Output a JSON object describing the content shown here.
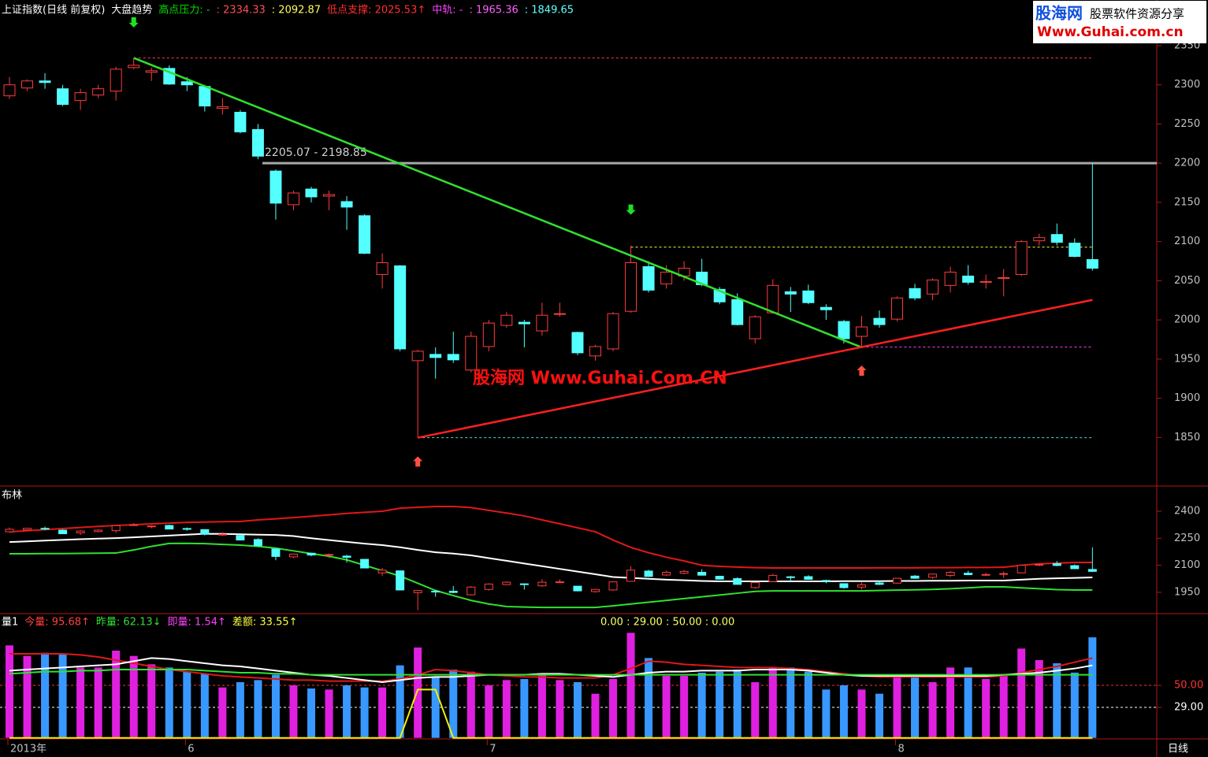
{
  "chart_data": [
    {
      "type": "candlestick",
      "header": [
        {
          "text": "上证指数(日线 前复权)",
          "color": "#ffffff"
        },
        {
          "text": "大盘趋势",
          "color": "#ffffff"
        },
        {
          "text": "高点压力: -",
          "color": "#00e000"
        },
        {
          "text": ": 2334.33",
          "color": "#ff5050"
        },
        {
          "text": ": 2092.87",
          "color": "#ffff60"
        },
        {
          "text": "低点支撑: 2025.53↑",
          "color": "#ff3030"
        },
        {
          "text": "中轨: -",
          "color": "#ff40ff"
        },
        {
          "text": ": 1965.36",
          "color": "#ff60ff"
        },
        {
          "text": ": 1849.65",
          "color": "#60ffff"
        }
      ],
      "open": [
        2286,
        2296,
        2305,
        2295,
        2280,
        2287,
        2292,
        2322,
        2316,
        2321,
        2304,
        2298,
        2270,
        2265,
        2243,
        2190,
        2147,
        2167,
        2158,
        2151,
        2133,
        2058,
        2069,
        1948,
        1956,
        1956,
        1936,
        1966,
        1993,
        1997,
        1986,
        2007,
        1984,
        1954,
        1963,
        2011,
        2068,
        2046,
        2056,
        2061,
        2039,
        2026,
        1976,
        2009,
        2036,
        2037,
        2016,
        1998,
        1979,
        2002,
        2001,
        2040,
        2033,
        2044,
        2056,
        2048,
        2053,
        2058,
        2101,
        2109,
        2098,
        2077
      ],
      "high": [
        2310,
        2307,
        2315,
        2300,
        2295,
        2300,
        2323,
        2334,
        2322,
        2325,
        2310,
        2300,
        2283,
        2268,
        2250,
        2192,
        2165,
        2170,
        2165,
        2158,
        2135,
        2085,
        2070,
        1962,
        1965,
        1985,
        1985,
        2000,
        2010,
        2000,
        2022,
        2022,
        1985,
        1968,
        2010,
        2095,
        2075,
        2070,
        2075,
        2078,
        2042,
        2034,
        2006,
        2052,
        2042,
        2045,
        2020,
        2000,
        2005,
        2012,
        2030,
        2046,
        2053,
        2068,
        2070,
        2058,
        2065,
        2102,
        2110,
        2123,
        2104,
        2199
      ],
      "low": [
        2282,
        2292,
        2295,
        2273,
        2268,
        2283,
        2280,
        2320,
        2305,
        2300,
        2292,
        2266,
        2262,
        2238,
        2205,
        2128,
        2140,
        2150,
        2140,
        2115,
        2084,
        2040,
        1960,
        1850,
        1925,
        1945,
        1933,
        1960,
        1990,
        1965,
        1980,
        2004,
        1955,
        1948,
        1960,
        2009,
        2035,
        2040,
        2050,
        2043,
        2020,
        1993,
        1970,
        2008,
        2010,
        2020,
        2000,
        1970,
        1966,
        1990,
        1998,
        2025,
        2025,
        2035,
        2045,
        2040,
        2030,
        2056,
        2095,
        2095,
        2080,
        2063
      ],
      "close": [
        2300,
        2305,
        2303,
        2275,
        2290,
        2295,
        2320,
        2325,
        2318,
        2301,
        2300,
        2273,
        2272,
        2240,
        2209,
        2149,
        2162,
        2157,
        2160,
        2144,
        2085,
        2073,
        1963,
        1960,
        1952,
        1949,
        1979,
        1996,
        2006,
        1995,
        2006,
        2008,
        1958,
        1966,
        2008,
        2073,
        2038,
        2061,
        2066,
        2045,
        2023,
        1994,
        2004,
        2044,
        2033,
        2022,
        2013,
        1976,
        1991,
        1994,
        2028,
        2028,
        2051,
        2061,
        2048,
        2049,
        2054,
        2100,
        2105,
        2099,
        2081,
        2066
      ],
      "up_color": "#ff3c3c",
      "down_color": "#54ffff",
      "ylim": [
        1790,
        2353
      ],
      "yticks": [
        1850,
        1900,
        1950,
        2000,
        2050,
        2100,
        2150,
        2200,
        2250,
        2300,
        2350
      ],
      "levels": [
        {
          "value": 2334.33,
          "from": 7,
          "color": "#ff4040",
          "dashed": true
        },
        {
          "value": 2200,
          "from": 14,
          "color": "#a8a8a8",
          "dashed": false
        },
        {
          "value": 2092.87,
          "from": 35,
          "color": "#ffff40",
          "dashed": true
        },
        {
          "value": 1965.36,
          "from": 48,
          "color": "#ff40ff",
          "dashed": true
        },
        {
          "value": 1849.65,
          "from": 23,
          "color": "#40e0e0",
          "dashed": true
        }
      ],
      "annotation": "2205.07 - 2198.85",
      "trendlines": [
        {
          "from": [
            7,
            2334.33
          ],
          "to": [
            48,
            1965
          ],
          "color": "#30e030"
        },
        {
          "from": [
            23,
            1849.65
          ],
          "to": [
            61,
            2025.53
          ],
          "color": "#ff2020"
        }
      ],
      "signals": [
        {
          "index": 7,
          "dir": "down"
        },
        {
          "index": 35,
          "dir": "down"
        },
        {
          "index": 23,
          "dir": "up"
        },
        {
          "index": 48,
          "dir": "up"
        }
      ],
      "watermark": "股海网 Www.Guhai.Com.CN",
      "xlabels": [
        {
          "index": 0,
          "label": "2013年"
        },
        {
          "index": 10,
          "label": "6"
        },
        {
          "index": 27,
          "label": "7"
        },
        {
          "index": 50,
          "label": "8"
        }
      ],
      "period": "日线"
    },
    {
      "type": "bollinger",
      "title": "布林",
      "series": [
        {
          "name": "upper",
          "color": "#e01818",
          "values": [
            2286,
            2292,
            2298,
            2304,
            2310,
            2316,
            2321,
            2325,
            2330,
            2334,
            2338,
            2340,
            2342,
            2343,
            2352,
            2358,
            2365,
            2372,
            2380,
            2388,
            2394,
            2400,
            2417,
            2422,
            2426,
            2426,
            2420,
            2405,
            2390,
            2374,
            2352,
            2330,
            2308,
            2286,
            2240,
            2199,
            2170,
            2145,
            2124,
            2100,
            2094,
            2090,
            2087,
            2085,
            2085,
            2085,
            2085,
            2085,
            2085,
            2086,
            2086,
            2086,
            2087,
            2087,
            2088,
            2088,
            2089,
            2100,
            2108,
            2112,
            2115,
            2116
          ]
        },
        {
          "name": "mid",
          "color": "#ffffff",
          "values": [
            2229,
            2233,
            2237,
            2241,
            2245,
            2248,
            2251,
            2255,
            2260,
            2265,
            2270,
            2275,
            2274,
            2272,
            2270,
            2268,
            2262,
            2250,
            2240,
            2230,
            2220,
            2212,
            2200,
            2185,
            2172,
            2165,
            2155,
            2140,
            2125,
            2110,
            2095,
            2080,
            2065,
            2050,
            2035,
            2030,
            2025,
            2020,
            2017,
            2013,
            2011,
            2011,
            2011,
            2011,
            2011,
            2011,
            2011,
            2012,
            2012,
            2012,
            2013,
            2013,
            2014,
            2014,
            2015,
            2015,
            2015,
            2020,
            2025,
            2028,
            2030,
            2033
          ]
        },
        {
          "name": "lower",
          "color": "#30e030",
          "values": [
            2164,
            2164,
            2165,
            2165,
            2166,
            2167,
            2168,
            2185,
            2205,
            2221,
            2222,
            2220,
            2216,
            2212,
            2205,
            2195,
            2180,
            2165,
            2150,
            2130,
            2100,
            2070,
            2040,
            2000,
            1960,
            1932,
            1905,
            1885,
            1871,
            1868,
            1866,
            1866,
            1866,
            1866,
            1875,
            1885,
            1895,
            1905,
            1915,
            1925,
            1935,
            1945,
            1955,
            1958,
            1958,
            1958,
            1958,
            1958,
            1958,
            1960,
            1962,
            1964,
            1966,
            1970,
            1975,
            1980,
            1980,
            1975,
            1970,
            1965,
            1963,
            1963
          ]
        }
      ],
      "ylim": [
        1836,
        2518
      ],
      "yticks": [
        1950,
        2100,
        2250,
        2400
      ]
    },
    {
      "type": "volume",
      "header": [
        {
          "text": "量1",
          "color": "#ffffff"
        },
        {
          "text": "今量: 95.68↑",
          "color": "#ff4040"
        },
        {
          "text": "昨量: 62.13↓",
          "color": "#30e030"
        },
        {
          "text": "即量: 1.54↑",
          "color": "#ff40ff"
        },
        {
          "text": "差额: 33.55↑",
          "color": "#ffff40"
        }
      ],
      "subheader": "0.00 : 29.00 : 50.00 : 0.00",
      "values": [
        88,
        78,
        81,
        80,
        67,
        67,
        83,
        78,
        70,
        67,
        63,
        61,
        48,
        53,
        55,
        60,
        50,
        47,
        46,
        50,
        48,
        48,
        69,
        86,
        58,
        65,
        63,
        50,
        55,
        56,
        60,
        55,
        53,
        42,
        56,
        100,
        76,
        59,
        59,
        62,
        63,
        65,
        53,
        67,
        67,
        63,
        46,
        50,
        46,
        42,
        58,
        58,
        53,
        67,
        67,
        56,
        59,
        85,
        74,
        71,
        62.13,
        95.68
      ],
      "up_color": "#e020e0",
      "down_color": "#3898ff",
      "lines": [
        {
          "name": "ma1",
          "color": "#e01818",
          "values": [
            80,
            80,
            80,
            80,
            79,
            77,
            74,
            71,
            68,
            65,
            63,
            61,
            59,
            58,
            57,
            56,
            55,
            55,
            54,
            54,
            54,
            54,
            56,
            60,
            65,
            64,
            62,
            60,
            59,
            58,
            58,
            57,
            57,
            57,
            60,
            66,
            73,
            72,
            70,
            69,
            68,
            67,
            67,
            67,
            66,
            65,
            63,
            61,
            59,
            58,
            58,
            58,
            58,
            58,
            58,
            58,
            59,
            62,
            65,
            68,
            72,
            76
          ]
        },
        {
          "name": "ma2",
          "color": "#ffffff",
          "values": [
            64,
            65,
            66,
            67,
            68,
            69,
            70,
            73,
            76,
            75,
            73,
            71,
            69,
            68,
            66,
            64,
            62,
            60,
            59,
            57,
            55,
            53,
            55,
            57,
            58,
            58,
            59,
            60,
            60,
            60,
            61,
            61,
            60,
            59,
            58,
            60,
            62,
            63,
            63,
            64,
            64,
            64,
            65,
            65,
            65,
            64,
            62,
            60,
            59,
            59,
            59,
            59,
            59,
            59,
            59,
            59,
            60,
            61,
            62,
            64,
            66,
            69
          ]
        },
        {
          "name": "ma3",
          "color": "#30e030",
          "values": [
            61,
            62,
            63,
            63,
            64,
            64,
            65,
            65,
            65,
            65,
            65,
            64,
            63,
            62,
            62,
            61,
            61,
            60,
            60,
            60,
            60,
            60,
            60,
            60,
            60,
            60,
            60,
            60,
            60,
            60,
            60,
            60,
            60,
            60,
            60,
            60,
            60,
            60,
            60,
            60,
            60,
            60,
            60,
            60,
            60,
            60,
            60,
            60,
            60,
            60,
            60,
            60,
            60,
            60,
            60,
            60,
            60,
            60,
            60,
            60,
            60,
            60
          ]
        },
        {
          "name": "signal",
          "color": "#f0f000",
          "values": [
            0,
            0,
            0,
            0,
            0,
            0,
            0,
            0,
            0,
            0,
            0,
            0,
            0,
            0,
            0,
            0,
            0,
            0,
            0,
            0,
            0,
            0,
            0,
            46,
            46,
            0,
            0,
            0,
            0,
            0,
            0,
            0,
            0,
            0,
            0,
            0,
            0,
            0,
            0,
            0,
            0,
            0,
            0,
            0,
            0,
            0,
            0,
            0,
            0,
            0,
            0,
            0,
            0,
            0,
            0,
            0,
            0,
            0,
            0,
            0,
            0,
            0
          ]
        }
      ],
      "ylim": [
        0,
        110
      ],
      "yticks": [
        {
          "value": 50,
          "label": "50.00"
        },
        {
          "value": 29,
          "label": "29.00"
        }
      ],
      "tick_colors": [
        "#ff3030",
        "#ffffff"
      ]
    }
  ],
  "logo": {
    "name": "股海网",
    "tagline": "股票软件资源分享",
    "url": "Www.Guhai.com.cn"
  }
}
